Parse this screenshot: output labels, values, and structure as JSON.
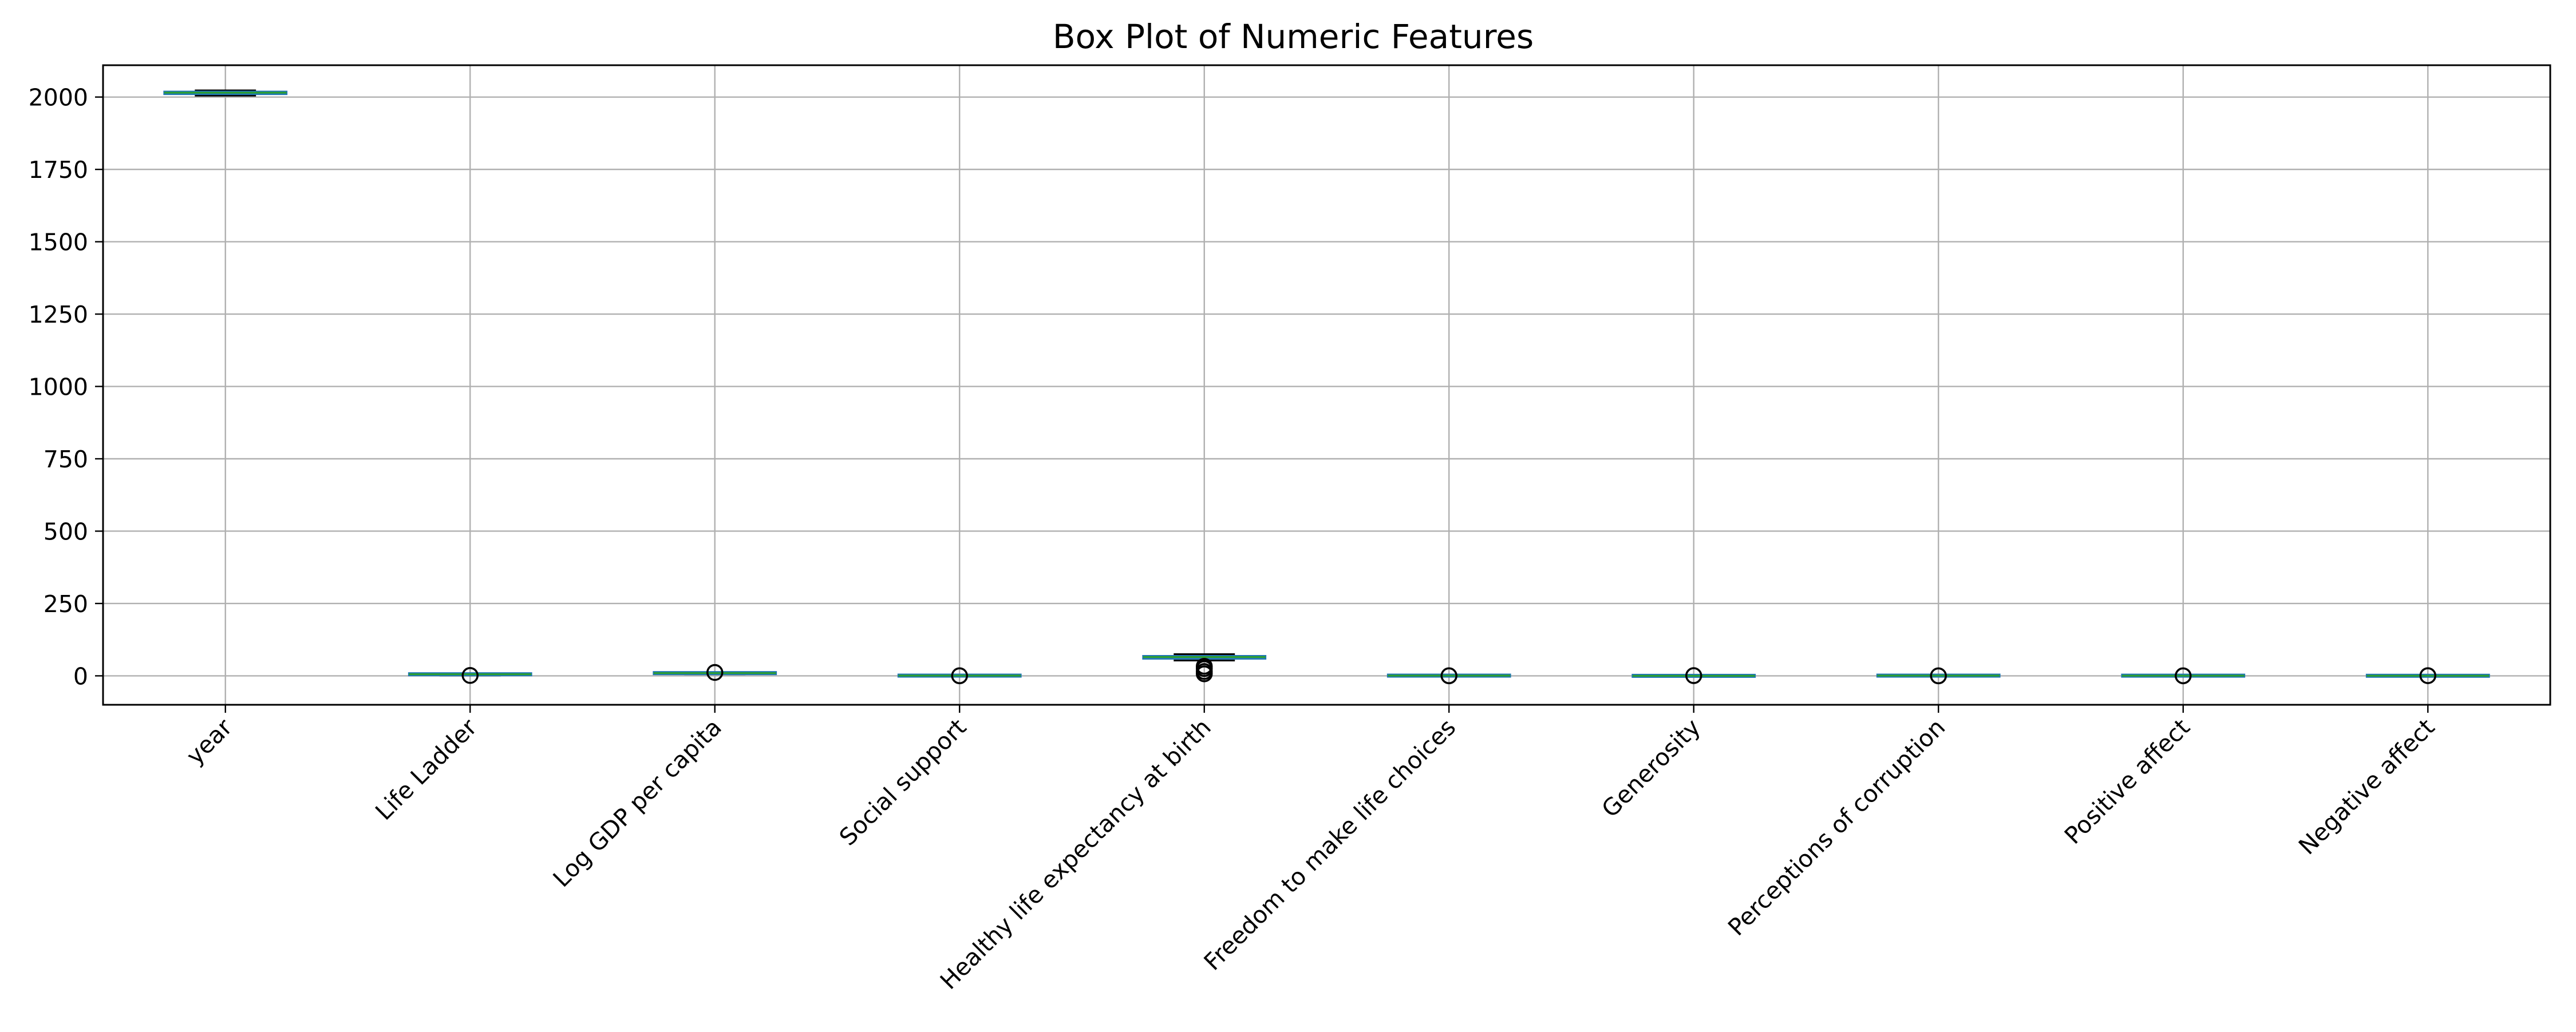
{
  "chart_data": {
    "type": "box",
    "title": "Box Plot of Numeric Features",
    "xlabel": "",
    "ylabel": "",
    "ylim": [
      -100,
      2110
    ],
    "yticks": [
      0,
      250,
      500,
      750,
      1000,
      1250,
      1500,
      1750,
      2000
    ],
    "grid": true,
    "colors": {
      "box": "#1f77b4",
      "median": "#2ca02c",
      "whisker": "#000000"
    },
    "categories": [
      "year",
      "Life Ladder",
      "Log GDP per capita",
      "Social support",
      "Healthy life expectancy at birth",
      "Freedom to make life choices",
      "Generosity",
      "Perceptions of corruption",
      "Positive affect",
      "Negative affect"
    ],
    "boxes": [
      {
        "whislo": 2005,
        "q1": 2010,
        "med": 2015,
        "q3": 2019,
        "whishi": 2023,
        "fliers": []
      },
      {
        "whislo": 1.3,
        "q1": 4.6,
        "med": 5.4,
        "q3": 6.3,
        "whishi": 8.0,
        "fliers": [
          1.3
        ]
      },
      {
        "whislo": 5.5,
        "q1": 8.5,
        "med": 9.5,
        "q3": 10.4,
        "whishi": 11.7,
        "fliers": [
          11.7
        ]
      },
      {
        "whislo": 0.4,
        "q1": 0.74,
        "med": 0.83,
        "q3": 0.9,
        "whishi": 0.99,
        "fliers": [
          0.3
        ]
      },
      {
        "whislo": 53,
        "q1": 59,
        "med": 65,
        "q3": 69,
        "whishi": 75,
        "fliers": [
          7,
          15,
          25,
          33
        ]
      },
      {
        "whislo": 0.3,
        "q1": 0.7,
        "med": 0.8,
        "q3": 0.88,
        "whishi": 1.0,
        "fliers": [
          0.25
        ]
      },
      {
        "whislo": -0.3,
        "q1": -0.1,
        "med": 0.0,
        "q3": 0.1,
        "whishi": 0.7,
        "fliers": [
          0.7
        ]
      },
      {
        "whislo": 0.04,
        "q1": 0.69,
        "med": 0.8,
        "q3": 0.86,
        "whishi": 0.98,
        "fliers": [
          0.04
        ]
      },
      {
        "whislo": 0.2,
        "q1": 0.57,
        "med": 0.66,
        "q3": 0.74,
        "whishi": 0.9,
        "fliers": [
          0.18
        ]
      },
      {
        "whislo": 0.08,
        "q1": 0.21,
        "med": 0.26,
        "q3": 0.32,
        "whishi": 0.7,
        "fliers": [
          0.6
        ]
      }
    ]
  }
}
